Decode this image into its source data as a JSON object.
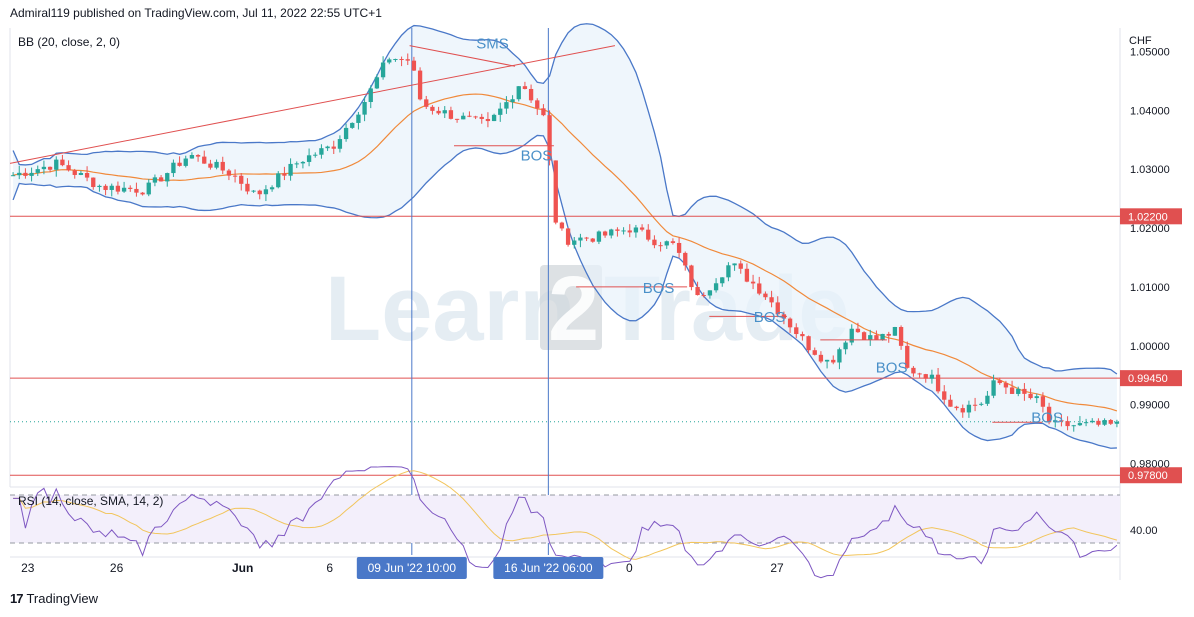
{
  "header": {
    "publish_text": "Admiral119 published on TradingView.com, Jul 11, 2022 22:55 UTC+1"
  },
  "footer": {
    "brand": "TradingView",
    "logo_glyph": "17"
  },
  "watermark": {
    "text_a": "Learn",
    "text_b": "2",
    "text_c": "Trade"
  },
  "colors": {
    "up": "#26a69a",
    "down": "#ef5350",
    "band": "#4a78c8",
    "basis": "#f0893a",
    "hline": "#e05050",
    "vline": "#4a78c8",
    "trend": "#e05050",
    "label": "#4a90c8",
    "rsi": "#7e57c2",
    "rsi_ma": "#f2c55c"
  },
  "chart_data": [
    {
      "type": "candlestick",
      "indicator": "BB (20, close, 2, 0)",
      "currency": "CHF",
      "y_ticks": [
        "1.05000",
        "1.04000",
        "1.03000",
        "1.02000",
        "1.01000",
        "1.00000",
        "0.99000",
        "0.98000"
      ],
      "ylim": [
        0.976,
        1.054
      ],
      "x_ticks": [
        "23",
        "26",
        "Jun",
        "6",
        "0",
        "27"
      ],
      "crosshair_labels": [
        "09 Jun '22   10:00",
        "16 Jun '22   06:00"
      ],
      "price_levels": [
        {
          "value": 1.022,
          "label": "1.02200"
        },
        {
          "value": 0.9945,
          "label": "0.99450"
        },
        {
          "value": 0.978,
          "label": "0.97800"
        }
      ],
      "annotations": [
        {
          "text": "SMS",
          "x": 0.42,
          "price": 1.0505
        },
        {
          "text": "BOS",
          "x": 0.46,
          "price": 1.0315
        },
        {
          "text": "BOS",
          "x": 0.57,
          "price": 1.009
        },
        {
          "text": "BOS",
          "x": 0.67,
          "price": 1.004
        },
        {
          "text": "BOS",
          "x": 0.78,
          "price": 0.9955
        },
        {
          "text": "BOS",
          "x": 0.92,
          "price": 0.987
        }
      ],
      "bos_segments": [
        {
          "x0": 0.4,
          "x1": 0.49,
          "price": 1.034
        },
        {
          "x0": 0.51,
          "x1": 0.61,
          "price": 1.01
        },
        {
          "x0": 0.63,
          "x1": 0.7,
          "price": 1.005
        },
        {
          "x0": 0.73,
          "x1": 0.79,
          "price": 1.001
        },
        {
          "x0": 0.885,
          "x1": 0.93,
          "price": 0.987
        }
      ],
      "trendlines": [
        {
          "x0": 0.0,
          "p0": 1.031,
          "x1": 0.545,
          "p1": 1.051
        },
        {
          "x0": 0.36,
          "p0": 1.051,
          "x1": 0.455,
          "p1": 1.0475
        }
      ],
      "vlines": [
        0.362,
        0.485
      ],
      "keypoints_close": [
        [
          0,
          1.029
        ],
        [
          0.04,
          1.031
        ],
        [
          0.08,
          1.027
        ],
        [
          0.12,
          1.0265
        ],
        [
          0.16,
          1.0325
        ],
        [
          0.2,
          1.029
        ],
        [
          0.22,
          1.0255
        ],
        [
          0.26,
          1.0315
        ],
        [
          0.29,
          1.034
        ],
        [
          0.32,
          1.042
        ],
        [
          0.34,
          1.049
        ],
        [
          0.36,
          1.0485
        ],
        [
          0.37,
          1.041
        ],
        [
          0.4,
          1.039
        ],
        [
          0.43,
          1.0375
        ],
        [
          0.45,
          1.042
        ],
        [
          0.46,
          1.045
        ],
        [
          0.48,
          1.039
        ],
        [
          0.483,
          1.038
        ],
        [
          0.49,
          1.022
        ],
        [
          0.5,
          1.018
        ],
        [
          0.53,
          1.0185
        ],
        [
          0.56,
          1.02
        ],
        [
          0.58,
          1.018
        ],
        [
          0.6,
          1.017
        ],
        [
          0.62,
          1.008
        ],
        [
          0.65,
          1.014
        ],
        [
          0.68,
          1.009
        ],
        [
          0.72,
          1.0
        ],
        [
          0.74,
          0.997
        ],
        [
          0.76,
          1.003
        ],
        [
          0.78,
          1.001
        ],
        [
          0.8,
          1.0025
        ],
        [
          0.81,
          0.996
        ],
        [
          0.83,
          0.995
        ],
        [
          0.85,
          0.99
        ],
        [
          0.86,
          0.9895
        ],
        [
          0.88,
          0.9905
        ],
        [
          0.89,
          0.994
        ],
        [
          0.91,
          0.992
        ],
        [
          0.93,
          0.9905
        ],
        [
          0.94,
          0.9865
        ],
        [
          1.0,
          0.9865
        ]
      ]
    },
    {
      "type": "line",
      "indicator": "RSI (14, close, SMA, 14, 2)",
      "y_ticks": [
        "40.00"
      ],
      "ylim": [
        20,
        80
      ]
    }
  ]
}
